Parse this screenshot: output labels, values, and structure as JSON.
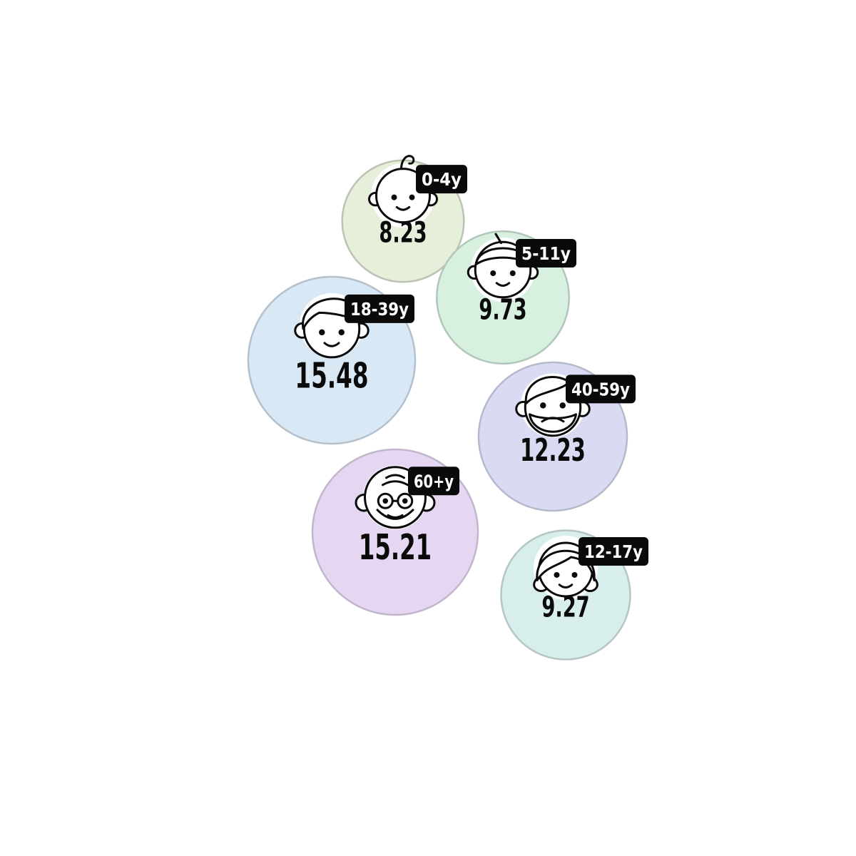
{
  "chart_data": {
    "type": "bubble",
    "title": "",
    "series": [
      {
        "label": "0-4y",
        "value": 8.23,
        "icon": "baby-face-icon",
        "fill": "#e6efd9",
        "stroke": "#bcc2b4"
      },
      {
        "label": "5-11y",
        "value": 9.73,
        "icon": "child-face-icon",
        "fill": "#d8f0e0",
        "stroke": "#b2c6bb"
      },
      {
        "label": "18-39y",
        "value": 15.48,
        "icon": "young-adult-face-icon",
        "fill": "#d8e8f5",
        "stroke": "#b4c0cc"
      },
      {
        "label": "40-59y",
        "value": 12.23,
        "icon": "bearded-man-face-icon",
        "fill": "#d9dbf3",
        "stroke": "#b6b8cb"
      },
      {
        "label": "60+y",
        "value": 15.21,
        "icon": "elderly-face-icon",
        "fill": "#e5d6f2",
        "stroke": "#c2b6cd"
      },
      {
        "label": "12-17y",
        "value": 9.27,
        "icon": "teen-face-icon",
        "fill": "#d8eeec",
        "stroke": "#b5c6c4"
      }
    ]
  }
}
